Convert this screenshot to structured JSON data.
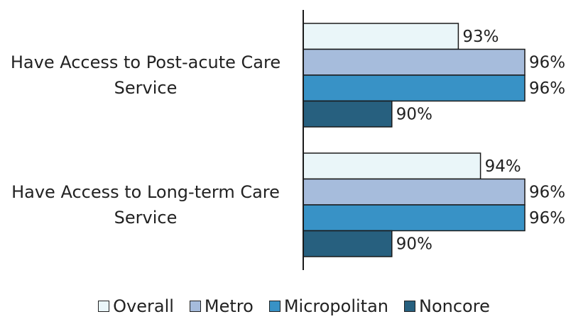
{
  "chart_data": {
    "type": "bar",
    "orientation": "horizontal",
    "categories": [
      "Have Access to Post-acute Care Service",
      "Have Access to Long-term Care Service"
    ],
    "series": [
      {
        "name": "Overall",
        "color": "#eaf6f9",
        "values": [
          93,
          94
        ],
        "value_labels": [
          "93%",
          "94%"
        ]
      },
      {
        "name": "Metro",
        "color": "#a6bcdc",
        "values": [
          96,
          96
        ],
        "value_labels": [
          "96%",
          "96%"
        ]
      },
      {
        "name": "Micropolitan",
        "color": "#3892c6",
        "values": [
          96,
          96
        ],
        "value_labels": [
          "96%",
          "96%"
        ]
      },
      {
        "name": "Noncore",
        "color": "#27607f",
        "values": [
          90,
          90
        ],
        "value_labels": [
          "90%",
          "90%"
        ]
      }
    ],
    "xlim": [
      86,
      96
    ],
    "grid": false,
    "legend": "bottom"
  }
}
